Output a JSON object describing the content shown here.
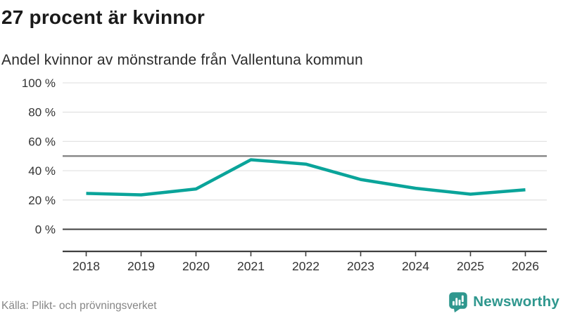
{
  "header": {
    "title": "27 procent är kvinnor",
    "subtitle": "Andel kvinnor av mönstrande från Vallentuna kommun"
  },
  "chart_data": {
    "type": "line",
    "title": "27 procent är kvinnor",
    "subtitle": "Andel kvinnor av mönstrande från Vallentuna kommun",
    "categories": [
      "2018",
      "2019",
      "2020",
      "2021",
      "2022",
      "2023",
      "2024",
      "2025",
      "2026"
    ],
    "series": [
      {
        "name": "Andel kvinnor av mönstrande",
        "values": [
          24.5,
          23.5,
          27.5,
          47.5,
          44.5,
          34,
          28,
          24,
          27
        ]
      }
    ],
    "unit": "%",
    "ylim": [
      0,
      100
    ],
    "yticks": [
      0,
      20,
      40,
      60,
      80,
      100
    ],
    "ytick_labels": [
      "0 %",
      "20 %",
      "40 %",
      "60 %",
      "80 %",
      "100 %"
    ],
    "reference_line": 50,
    "grid": true,
    "legend": false,
    "line_color": "#0aa49a"
  },
  "footer": {
    "source": "Källa: Plikt- och prövningsverket",
    "brand": "Newsworthy",
    "brand_icon": "bar-chart-speech-bubble"
  },
  "colors": {
    "line": "#0aa49a",
    "brand": "#2f978e",
    "grid": "#e3e3e3",
    "reference": "#808080",
    "axis": "#3f3f3f",
    "title": "#1a1a1a",
    "subtitle": "#2b2b2b",
    "tick_text": "#333333",
    "source_text": "#868686"
  }
}
